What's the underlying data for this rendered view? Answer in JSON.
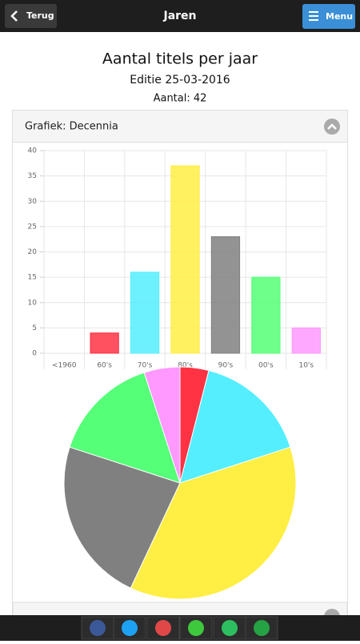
{
  "header": {
    "back": "Terug",
    "title": "Jaren",
    "menu": "Menu"
  },
  "page": {
    "title": "Aantal titels per jaar",
    "edition": "Editie 25-03-2016",
    "count": "Aantal: 42"
  },
  "panel": {
    "title": "Grafiek: Decennia"
  },
  "chart_data": [
    {
      "type": "bar",
      "categories": [
        "<1960",
        "60's",
        "70's",
        "80's",
        "90's",
        "00's",
        "10's"
      ],
      "values": [
        0,
        4,
        16,
        37,
        23,
        15,
        5
      ],
      "colors": [
        "#ff3344",
        "#ff3344",
        "#55eeff",
        "#ffee44",
        "#808080",
        "#55ff77",
        "#ff99ff"
      ],
      "ylim": [
        0,
        40
      ],
      "yticks": [
        0,
        5,
        10,
        15,
        20,
        25,
        30,
        35,
        40
      ],
      "grid": true
    },
    {
      "type": "pie",
      "categories": [
        "<1960",
        "60's",
        "70's",
        "80's",
        "90's",
        "00's",
        "10's"
      ],
      "values": [
        0,
        4,
        16,
        37,
        23,
        15,
        5
      ],
      "colors": [
        "#ff3344",
        "#ff3344",
        "#55eeff",
        "#ffee44",
        "#808080",
        "#55ff77",
        "#ff99ff"
      ]
    }
  ]
}
